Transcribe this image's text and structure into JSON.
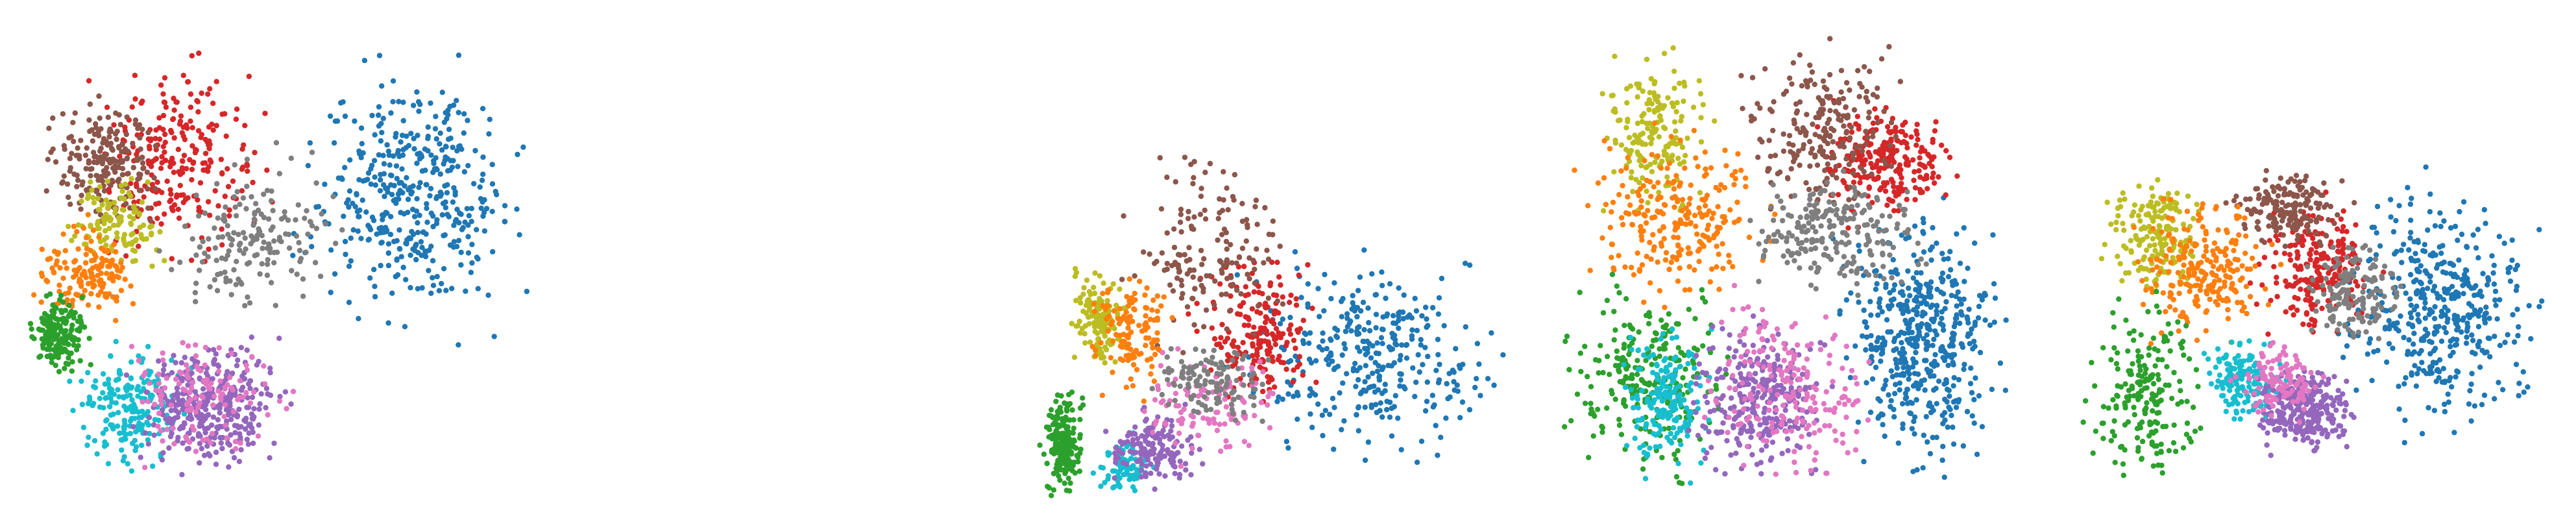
{
  "chart_data": [
    {
      "type": "scatter",
      "panel": "panel-1",
      "title": "",
      "xlabel": "",
      "ylabel": "",
      "legend": "none",
      "grid": false,
      "clusters": [
        {
          "color": "#1f77b4",
          "x_range": [
            0.5,
            1.0
          ],
          "y_range": [
            0.05,
            0.7
          ],
          "count": 420
        },
        {
          "color": "#d62728",
          "x_range": [
            0.1,
            0.5
          ],
          "y_range": [
            0.05,
            0.55
          ],
          "count": 260
        },
        {
          "color": "#8c564b",
          "x_range": [
            0.05,
            0.3
          ],
          "y_range": [
            0.15,
            0.45
          ],
          "count": 200
        },
        {
          "color": "#bcbd22",
          "x_range": [
            0.08,
            0.3
          ],
          "y_range": [
            0.3,
            0.55
          ],
          "count": 120
        },
        {
          "color": "#ff7f0e",
          "x_range": [
            0.02,
            0.25
          ],
          "y_range": [
            0.4,
            0.65
          ],
          "count": 150
        },
        {
          "color": "#2ca02c",
          "x_range": [
            0.02,
            0.15
          ],
          "y_range": [
            0.55,
            0.75
          ],
          "count": 170
        },
        {
          "color": "#17becf",
          "x_range": [
            0.08,
            0.35
          ],
          "y_range": [
            0.65,
            0.95
          ],
          "count": 200
        },
        {
          "color": "#9467bd",
          "x_range": [
            0.2,
            0.55
          ],
          "y_range": [
            0.65,
            0.95
          ],
          "count": 350
        },
        {
          "color": "#e377c2",
          "x_range": [
            0.15,
            0.6
          ],
          "y_range": [
            0.6,
            0.95
          ],
          "count": 120
        },
        {
          "color": "#7f7f7f",
          "x_range": [
            0.25,
            0.65
          ],
          "y_range": [
            0.25,
            0.65
          ],
          "count": 170
        }
      ]
    },
    {
      "type": "scatter",
      "panel": "panel-2",
      "title": "",
      "xlabel": "",
      "ylabel": "",
      "legend": "none",
      "grid": false,
      "clusters": [
        {
          "color": "#1f77b4",
          "x_range": [
            0.35,
            1.0
          ],
          "y_range": [
            0.45,
            0.95
          ],
          "count": 330
        },
        {
          "color": "#d62728",
          "x_range": [
            0.3,
            0.6
          ],
          "y_range": [
            0.45,
            0.85
          ],
          "count": 200
        },
        {
          "color": "#8c564b",
          "x_range": [
            0.15,
            0.55
          ],
          "y_range": [
            0.2,
            0.75
          ],
          "count": 160
        },
        {
          "color": "#bcbd22",
          "x_range": [
            0.05,
            0.2
          ],
          "y_range": [
            0.5,
            0.75
          ],
          "count": 140
        },
        {
          "color": "#ff7f0e",
          "x_range": [
            0.08,
            0.3
          ],
          "y_range": [
            0.5,
            0.8
          ],
          "count": 120
        },
        {
          "color": "#2ca02c",
          "x_range": [
            0.0,
            0.1
          ],
          "y_range": [
            0.75,
            1.0
          ],
          "count": 220
        },
        {
          "color": "#17becf",
          "x_range": [
            0.1,
            0.25
          ],
          "y_range": [
            0.85,
            1.0
          ],
          "count": 80
        },
        {
          "color": "#9467bd",
          "x_range": [
            0.12,
            0.35
          ],
          "y_range": [
            0.78,
            0.98
          ],
          "count": 150
        },
        {
          "color": "#e377c2",
          "x_range": [
            0.15,
            0.55
          ],
          "y_range": [
            0.65,
            0.95
          ],
          "count": 110
        },
        {
          "color": "#7f7f7f",
          "x_range": [
            0.2,
            0.5
          ],
          "y_range": [
            0.65,
            0.85
          ],
          "count": 120
        }
      ]
    },
    {
      "type": "scatter",
      "panel": "panel-3",
      "title": "",
      "xlabel": "",
      "ylabel": "",
      "legend": "none",
      "grid": false,
      "clusters": [
        {
          "color": "#1f77b4",
          "x_range": [
            0.55,
            0.95
          ],
          "y_range": [
            0.35,
            0.98
          ],
          "count": 480
        },
        {
          "color": "#d62728",
          "x_range": [
            0.5,
            0.85
          ],
          "y_range": [
            0.15,
            0.45
          ],
          "count": 240
        },
        {
          "color": "#8c564b",
          "x_range": [
            0.35,
            0.75
          ],
          "y_range": [
            0.03,
            0.45
          ],
          "count": 220
        },
        {
          "color": "#bcbd22",
          "x_range": [
            0.08,
            0.35
          ],
          "y_range": [
            0.05,
            0.45
          ],
          "count": 180
        },
        {
          "color": "#ff7f0e",
          "x_range": [
            0.02,
            0.5
          ],
          "y_range": [
            0.2,
            0.65
          ],
          "count": 240
        },
        {
          "color": "#2ca02c",
          "x_range": [
            0.0,
            0.4
          ],
          "y_range": [
            0.5,
            0.98
          ],
          "count": 260
        },
        {
          "color": "#17becf",
          "x_range": [
            0.12,
            0.35
          ],
          "y_range": [
            0.6,
            0.98
          ],
          "count": 180
        },
        {
          "color": "#9467bd",
          "x_range": [
            0.25,
            0.6
          ],
          "y_range": [
            0.6,
            0.98
          ],
          "count": 300
        },
        {
          "color": "#e377c2",
          "x_range": [
            0.25,
            0.7
          ],
          "y_range": [
            0.55,
            0.98
          ],
          "count": 200
        },
        {
          "color": "#7f7f7f",
          "x_range": [
            0.35,
            0.8
          ],
          "y_range": [
            0.3,
            0.6
          ],
          "count": 230
        }
      ]
    },
    {
      "type": "scatter",
      "panel": "panel-4",
      "title": "",
      "xlabel": "",
      "ylabel": "",
      "legend": "none",
      "grid": false,
      "clusters": [
        {
          "color": "#1f77b4",
          "x_range": [
            0.5,
            1.0
          ],
          "y_range": [
            0.3,
            0.9
          ],
          "count": 420
        },
        {
          "color": "#d62728",
          "x_range": [
            0.35,
            0.65
          ],
          "y_range": [
            0.35,
            0.7
          ],
          "count": 220
        },
        {
          "color": "#8c564b",
          "x_range": [
            0.3,
            0.6
          ],
          "y_range": [
            0.3,
            0.5
          ],
          "count": 180
        },
        {
          "color": "#bcbd22",
          "x_range": [
            0.05,
            0.3
          ],
          "y_range": [
            0.3,
            0.6
          ],
          "count": 180
        },
        {
          "color": "#ff7f0e",
          "x_range": [
            0.1,
            0.45
          ],
          "y_range": [
            0.35,
            0.7
          ],
          "count": 220
        },
        {
          "color": "#2ca02c",
          "x_range": [
            0.0,
            0.3
          ],
          "y_range": [
            0.55,
            1.0
          ],
          "count": 200
        },
        {
          "color": "#17becf",
          "x_range": [
            0.25,
            0.45
          ],
          "y_range": [
            0.65,
            0.85
          ],
          "count": 150
        },
        {
          "color": "#9467bd",
          "x_range": [
            0.35,
            0.6
          ],
          "y_range": [
            0.7,
            0.92
          ],
          "count": 260
        },
        {
          "color": "#e377c2",
          "x_range": [
            0.3,
            0.55
          ],
          "y_range": [
            0.65,
            0.85
          ],
          "count": 110
        },
        {
          "color": "#7f7f7f",
          "x_range": [
            0.45,
            0.7
          ],
          "y_range": [
            0.45,
            0.7
          ],
          "count": 150
        }
      ]
    }
  ]
}
